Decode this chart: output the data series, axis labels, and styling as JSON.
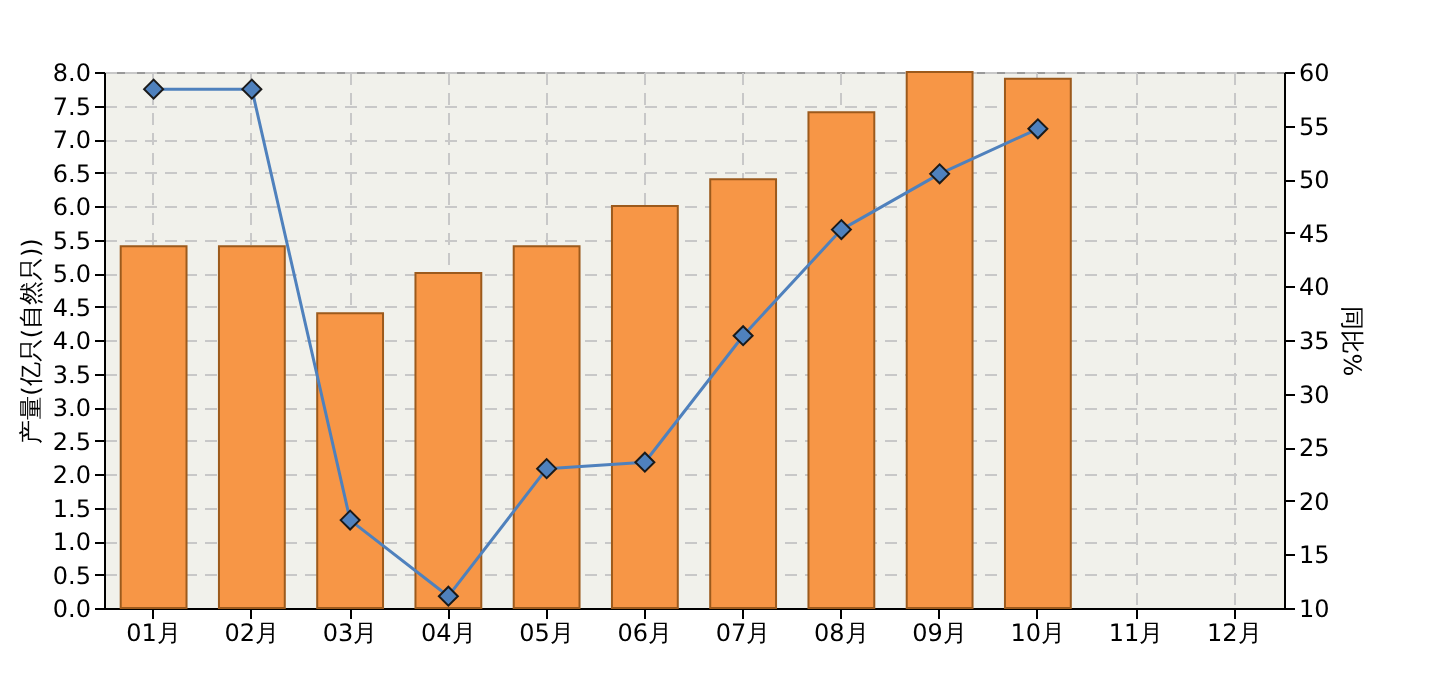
{
  "chart_data": {
    "type": "bar",
    "xlabel": null,
    "ylabel": "产量(亿只(自然只))",
    "y2label": "同比%",
    "categories": [
      "01月",
      "02月",
      "03月",
      "04月",
      "05月",
      "06月",
      "07月",
      "08月",
      "09月",
      "10月",
      "11月",
      "12月"
    ],
    "series": [
      {
        "color": "#f79646",
        "values": [
          5.4,
          5.4,
          4.4,
          5.0,
          5.4,
          6.0,
          6.4,
          7.4,
          8.0,
          7.9,
          null,
          null
        ]
      },
      {
        "type": "line",
        "axis": "y2",
        "color": "#4f81bd",
        "marker": "diamond",
        "values": [
          58.4,
          58.4,
          18.2,
          11.1,
          23.0,
          23.6,
          35.4,
          45.3,
          50.5,
          54.7,
          null,
          null
        ]
      }
    ],
    "ylim": [
      0,
      8
    ],
    "yticks": [
      {
        "value": 0,
        "label": "0.0"
      },
      {
        "value": 0.5,
        "label": "0.5"
      },
      {
        "value": 1,
        "label": "1.0"
      },
      {
        "value": 1.5,
        "label": "1.5"
      },
      {
        "value": 2,
        "label": "2.0"
      },
      {
        "value": 2.5,
        "label": "2.5"
      },
      {
        "value": 3,
        "label": "3.0"
      },
      {
        "value": 3.5,
        "label": "3.5"
      },
      {
        "value": 4,
        "label": "4.0"
      },
      {
        "value": 4.5,
        "label": "4.5"
      },
      {
        "value": 5,
        "label": "5.0"
      },
      {
        "value": 5.5,
        "label": "5.5"
      },
      {
        "value": 6,
        "label": "6.0"
      },
      {
        "value": 6.5,
        "label": "6.5"
      },
      {
        "value": 7,
        "label": "7.0"
      },
      {
        "value": 7.5,
        "label": "7.5"
      },
      {
        "value": 8,
        "label": "8.0"
      }
    ],
    "y2lim": [
      10,
      60
    ],
    "y2ticks": [
      10,
      15,
      20,
      25,
      30,
      35,
      40,
      45,
      50,
      55,
      60
    ],
    "grid": true
  }
}
